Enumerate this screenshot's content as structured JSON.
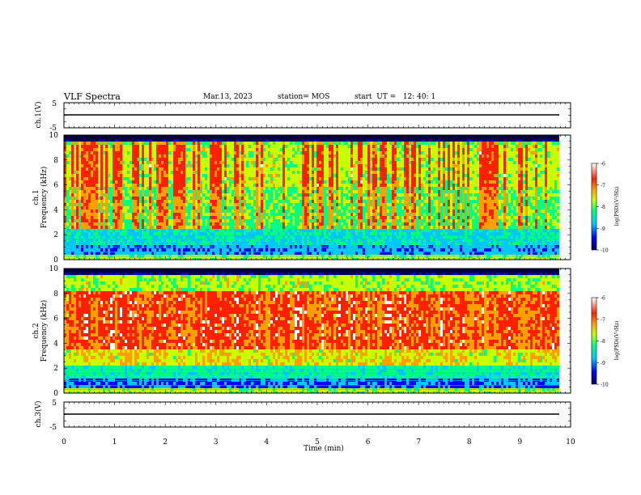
{
  "header": {
    "title": "VLF Spectra",
    "date": "Mar.13, 2023",
    "station": "station= MOS",
    "start": "start  UT =   12: 40: 1"
  },
  "colors": {
    "colormap": [
      "#000060",
      "#0000ff",
      "#00c8ff",
      "#00ff80",
      "#c8ff00",
      "#ffa000",
      "#ff2000",
      "#ffffff"
    ]
  },
  "chart_data": [
    {
      "type": "line",
      "name": "ch1-waveform",
      "ylabel": "ch.1(V)",
      "yticks": [
        "5",
        "-5"
      ],
      "ylim": [
        -5,
        5
      ],
      "xlim": [
        0,
        10
      ],
      "baseline_value": -1.5
    },
    {
      "type": "heatmap",
      "name": "ch1-spectrogram",
      "ylabel_line1": "ch.1",
      "ylabel_line2": "Frequency  (kHz)",
      "yticks": [
        "0",
        "2",
        "4",
        "6",
        "8",
        "10"
      ],
      "ylim": [
        0,
        10
      ],
      "xlim": [
        0,
        9.85
      ],
      "colorbar": {
        "label": "log(PSD)(V²/Hz)",
        "ticks": [
          "-6",
          "-7",
          "-8",
          "-9",
          "-10"
        ],
        "range": [
          -10,
          -6
        ]
      },
      "description": "wideband emission 2.5-9.5 kHz, strongest (~-7) in vertical streaks, noise lines near 0-2 kHz"
    },
    {
      "type": "heatmap",
      "name": "ch2-spectrogram",
      "ylabel_line1": "ch.2",
      "ylabel_line2": "Frequency  (kHz)",
      "yticks": [
        "0",
        "2",
        "4",
        "6",
        "8",
        "10"
      ],
      "ylim": [
        0,
        10
      ],
      "xlim": [
        0,
        9.85
      ],
      "colorbar": {
        "label": "log(PSD)(V²/Hz)",
        "ticks": [
          "-6",
          "-7",
          "-8",
          "-9",
          "-10"
        ],
        "range": [
          -10,
          -6
        ]
      },
      "description": "intense emission 3.5-8.5 kHz (>-6.5), weaker edges, noise lines near 0-2 kHz"
    },
    {
      "type": "line",
      "name": "ch3-waveform",
      "ylabel": "ch.3(V)",
      "yticks": [
        "5",
        "-5"
      ],
      "ylim": [
        -5,
        5
      ],
      "xlim": [
        0,
        10
      ],
      "baseline_value": -1.5
    }
  ],
  "xaxis": {
    "label": "Time  (min)",
    "ticks": [
      "0",
      "1",
      "2",
      "3",
      "4",
      "5",
      "6",
      "7",
      "8",
      "9",
      "10"
    ],
    "range": [
      0,
      10
    ]
  }
}
